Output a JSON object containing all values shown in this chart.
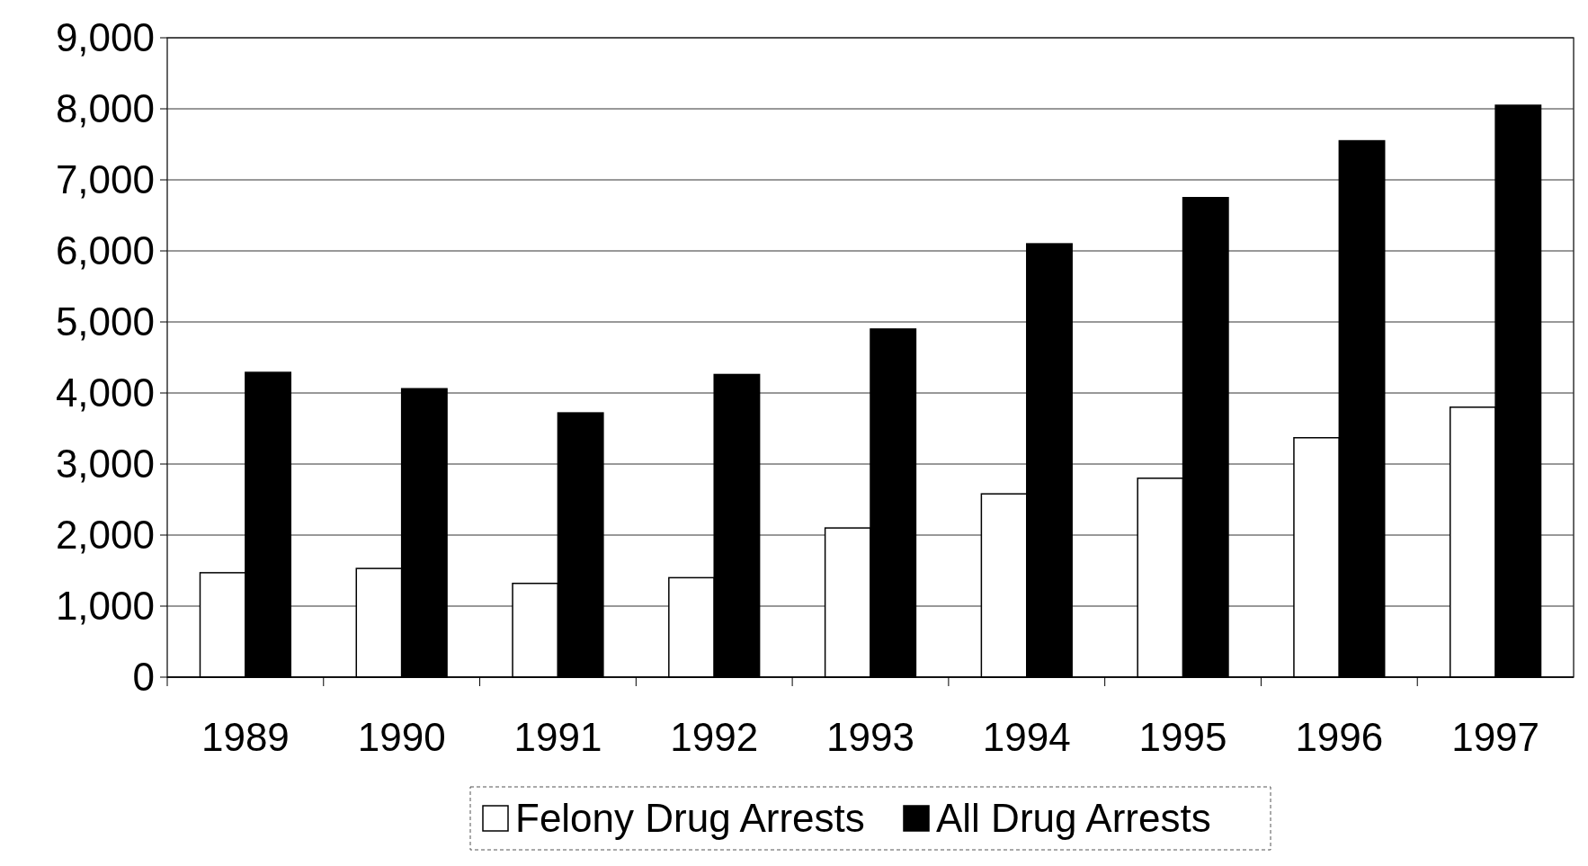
{
  "chart_data": {
    "type": "bar",
    "categories": [
      "1989",
      "1990",
      "1991",
      "1992",
      "1993",
      "1994",
      "1995",
      "1996",
      "1997"
    ],
    "series": [
      {
        "name": "Felony Drug Arrests",
        "color": "#ffffff",
        "values": [
          1470,
          1530,
          1320,
          1400,
          2100,
          2580,
          2800,
          3370,
          3800
        ]
      },
      {
        "name": "All Drug Arrests",
        "color": "#000000",
        "values": [
          4290,
          4060,
          3720,
          4260,
          4900,
          6100,
          6750,
          7550,
          8050
        ]
      }
    ],
    "ylim": [
      0,
      9000
    ],
    "yticks": [
      {
        "value": 0,
        "label": "0"
      },
      {
        "value": 1000,
        "label": "1,000"
      },
      {
        "value": 2000,
        "label": "2,000"
      },
      {
        "value": 3000,
        "label": "3,000"
      },
      {
        "value": 4000,
        "label": "4,000"
      },
      {
        "value": 5000,
        "label": "5,000"
      },
      {
        "value": 6000,
        "label": "6,000"
      },
      {
        "value": 7000,
        "label": "7,000"
      },
      {
        "value": 8000,
        "label": "8,000"
      },
      {
        "value": 9000,
        "label": "9,000"
      }
    ],
    "grid": "y",
    "legend": "bottom"
  }
}
